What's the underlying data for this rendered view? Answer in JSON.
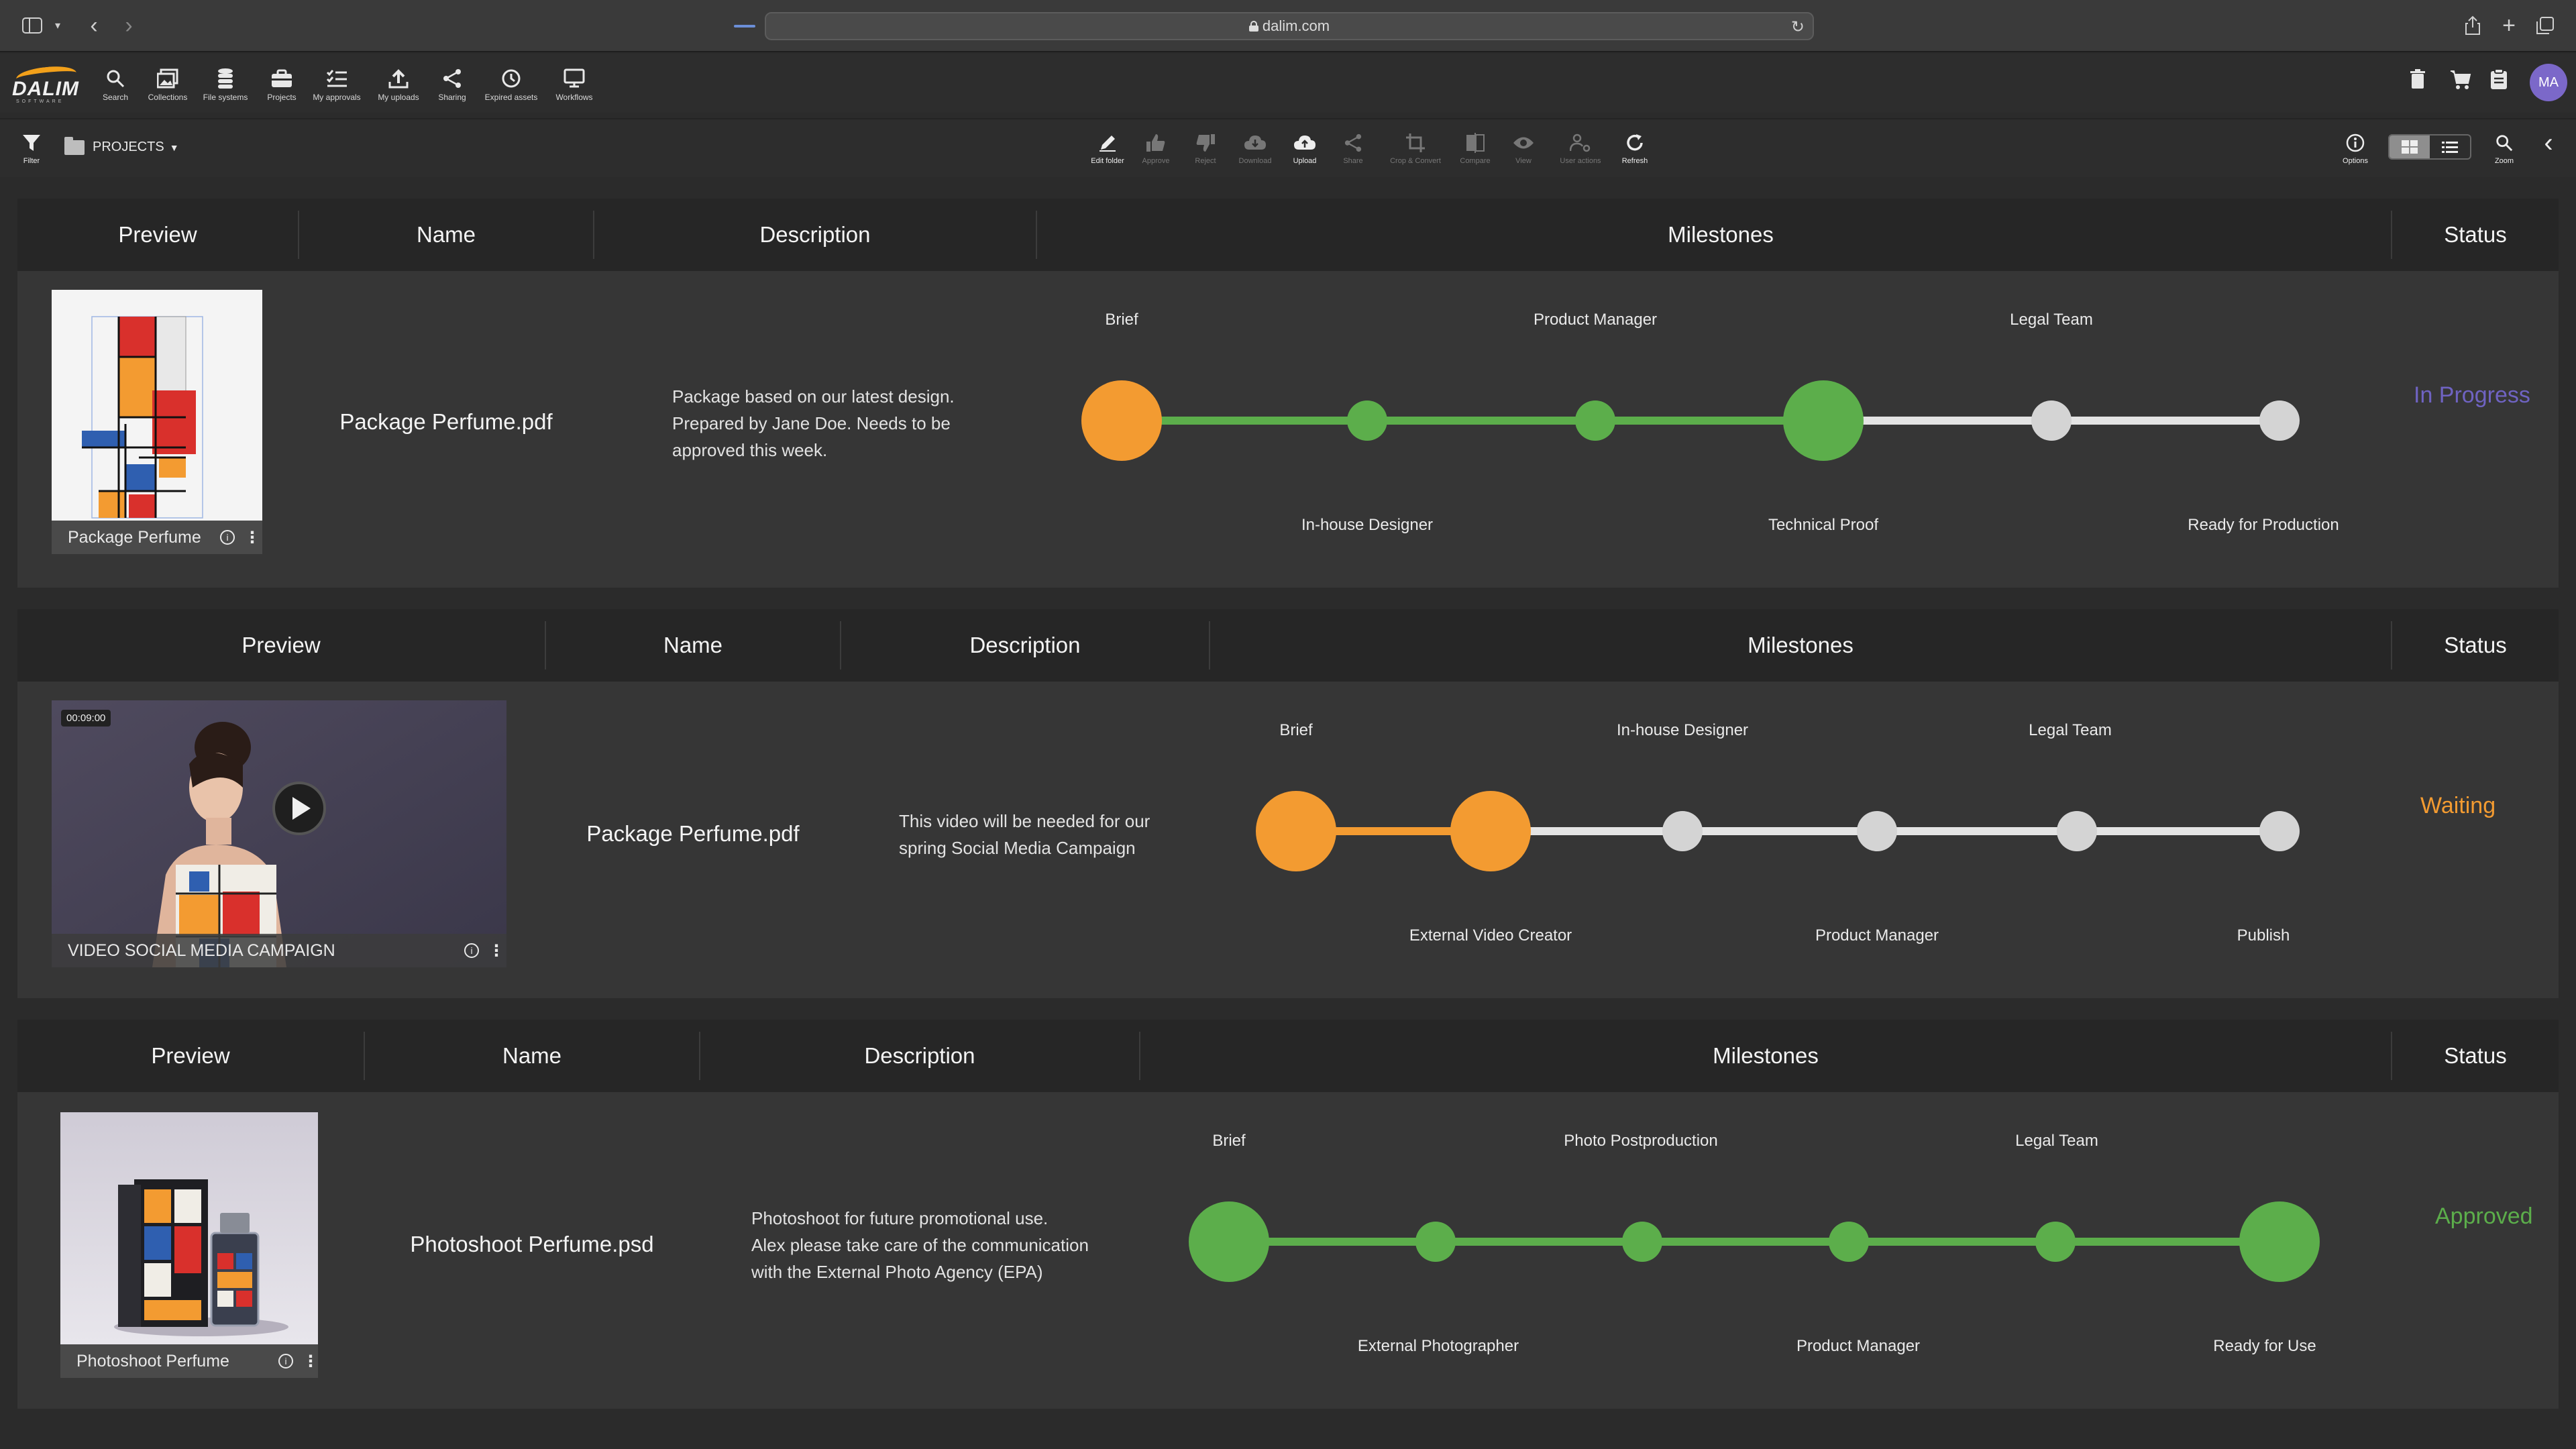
{
  "browser": {
    "url": "dalim.com"
  },
  "nav": [
    {
      "label": "Search",
      "icon": "search-icon"
    },
    {
      "label": "Collections",
      "icon": "collections-icon"
    },
    {
      "label": "File systems",
      "icon": "database-icon"
    },
    {
      "label": "Projects",
      "icon": "briefcase-icon"
    },
    {
      "label": "My approvals",
      "icon": "checklist-icon"
    },
    {
      "label": "My uploads",
      "icon": "upload-icon"
    },
    {
      "label": "Sharing",
      "icon": "share-icon"
    },
    {
      "label": "Expired assets",
      "icon": "clock-icon"
    },
    {
      "label": "Workflows",
      "icon": "monitor-icon"
    }
  ],
  "user": {
    "initials": "MA"
  },
  "toolbar": {
    "filter_label": "Filter",
    "crumb": "PROJECTS",
    "actions": [
      {
        "label": "Edit folder",
        "enabled": true
      },
      {
        "label": "Approve",
        "enabled": false
      },
      {
        "label": "Reject",
        "enabled": false
      },
      {
        "label": "Download",
        "enabled": false
      },
      {
        "label": "Upload",
        "enabled": true
      },
      {
        "label": "Share",
        "enabled": false
      },
      {
        "label": "Crop & Convert",
        "enabled": false
      },
      {
        "label": "Compare",
        "enabled": false
      },
      {
        "label": "View",
        "enabled": false
      },
      {
        "label": "User actions",
        "enabled": false
      },
      {
        "label": "Refresh",
        "enabled": true
      }
    ],
    "options_label": "Options",
    "zoom_label": "Zoom"
  },
  "headers": {
    "preview": "Preview",
    "name": "Name",
    "description": "Description",
    "milestones": "Milestones",
    "status": "Status"
  },
  "projects": [
    {
      "thumb_caption": "Package Perfume",
      "name": "Package Perfume.pdf",
      "description": [
        "Package based on our latest design.",
        "Prepared by Jane Doe. Needs to be",
        "approved this week."
      ],
      "status": "In Progress",
      "status_color": "#6f63c2",
      "milestones": [
        "Brief",
        "In-house Designer",
        "Product Manager",
        "Technical Proof",
        "Legal Team",
        "Ready for Production"
      ],
      "states": [
        "current",
        "done",
        "done",
        "current",
        "todo",
        "todo"
      ],
      "node_color": [
        "orange",
        "green",
        "green",
        "green",
        "grey",
        "grey"
      ]
    },
    {
      "thumb_caption": "VIDEO SOCIAL MEDIA CAMPAIGN",
      "thumb_time": "00:09:00",
      "name": "Package Perfume.pdf",
      "description": [
        "This video will be needed for our",
        "spring Social Media Campaign"
      ],
      "status": "Waiting",
      "status_color": "#f39b31",
      "milestones": [
        "Brief",
        "External Video Creator",
        "In-house Designer",
        "Product Manager",
        "Legal Team",
        "Publish"
      ],
      "states": [
        "current",
        "current",
        "todo",
        "todo",
        "todo",
        "todo"
      ],
      "node_color": [
        "orange",
        "orange",
        "grey",
        "grey",
        "grey",
        "grey"
      ]
    },
    {
      "thumb_caption": "Photoshoot Perfume",
      "name": "Photoshoot Perfume.psd",
      "description": [
        "Photoshoot for future promotional use.",
        "Alex please take care of the communication",
        "with the External Photo Agency (EPA)"
      ],
      "status": "Approved",
      "status_color": "#5cae4b",
      "milestones": [
        "Brief",
        "External Photographer",
        "Photo Postproduction",
        "Product Manager",
        "Legal Team",
        "Ready for Use"
      ],
      "states": [
        "current",
        "done",
        "done",
        "done",
        "done",
        "current"
      ],
      "node_color": [
        "green",
        "green",
        "green",
        "green",
        "green",
        "green"
      ]
    }
  ]
}
